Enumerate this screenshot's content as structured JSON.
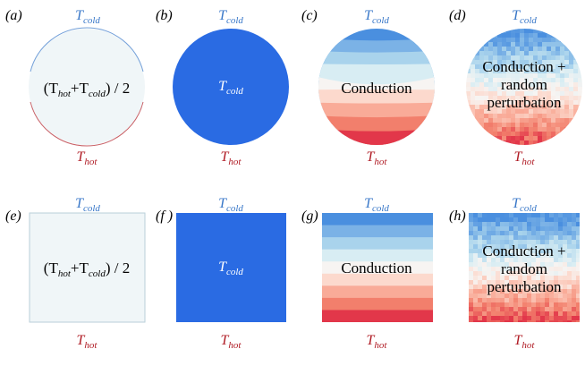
{
  "colors": {
    "cold_label": "#3b79c9",
    "hot_label": "#b01c25",
    "mid_fill": "#f0f6f8",
    "cold_fill": "#2a6be3",
    "band_palette": [
      "#4a8fdf",
      "#7bb2e6",
      "#a9d3ec",
      "#d8edf3",
      "#f7f4f2",
      "#fcd9cd",
      "#f9ab98",
      "#f27f6c",
      "#e2374a"
    ]
  },
  "panels": [
    {
      "tag": "(a)",
      "shape": "circle",
      "fill": "mid",
      "top_label": "T",
      "top_sub": "cold",
      "bottom_label": "T",
      "bottom_sub": "hot",
      "center_parts": [
        "(T",
        "hot",
        "+T",
        "cold",
        ") / 2"
      ]
    },
    {
      "tag": "(b)",
      "shape": "circle",
      "fill": "cold",
      "top_label": "T",
      "top_sub": "cold",
      "bottom_label": "T",
      "bottom_sub": "hot",
      "center_parts": [
        "T",
        "cold"
      ]
    },
    {
      "tag": "(c)",
      "shape": "circle",
      "fill": "conduction",
      "top_label": "T",
      "top_sub": "cold",
      "bottom_label": "T",
      "bottom_sub": "hot",
      "center_lines": [
        "Conduction"
      ]
    },
    {
      "tag": "(d)",
      "shape": "circle",
      "fill": "perturbed",
      "top_label": "T",
      "top_sub": "cold",
      "bottom_label": "T",
      "bottom_sub": "hot",
      "center_lines": [
        "Conduction +",
        "random",
        "perturbation"
      ]
    },
    {
      "tag": "(e)",
      "shape": "square",
      "fill": "mid",
      "top_label": "T",
      "top_sub": "cold",
      "bottom_label": "T",
      "bottom_sub": "hot",
      "center_parts": [
        "(T",
        "hot",
        "+T",
        "cold",
        ") / 2"
      ]
    },
    {
      "tag": "(f )",
      "shape": "square",
      "fill": "cold",
      "top_label": "T",
      "top_sub": "cold",
      "bottom_label": "T",
      "bottom_sub": "hot",
      "center_parts": [
        "T",
        "cold"
      ]
    },
    {
      "tag": "(g)",
      "shape": "square",
      "fill": "conduction",
      "top_label": "T",
      "top_sub": "cold",
      "bottom_label": "T",
      "bottom_sub": "hot",
      "center_lines": [
        "Conduction"
      ]
    },
    {
      "tag": "(h)",
      "shape": "square",
      "fill": "perturbed",
      "top_label": "T",
      "top_sub": "cold",
      "bottom_label": "T",
      "bottom_sub": "hot",
      "center_lines": [
        "Conduction +",
        "random",
        "perturbation"
      ]
    }
  ]
}
